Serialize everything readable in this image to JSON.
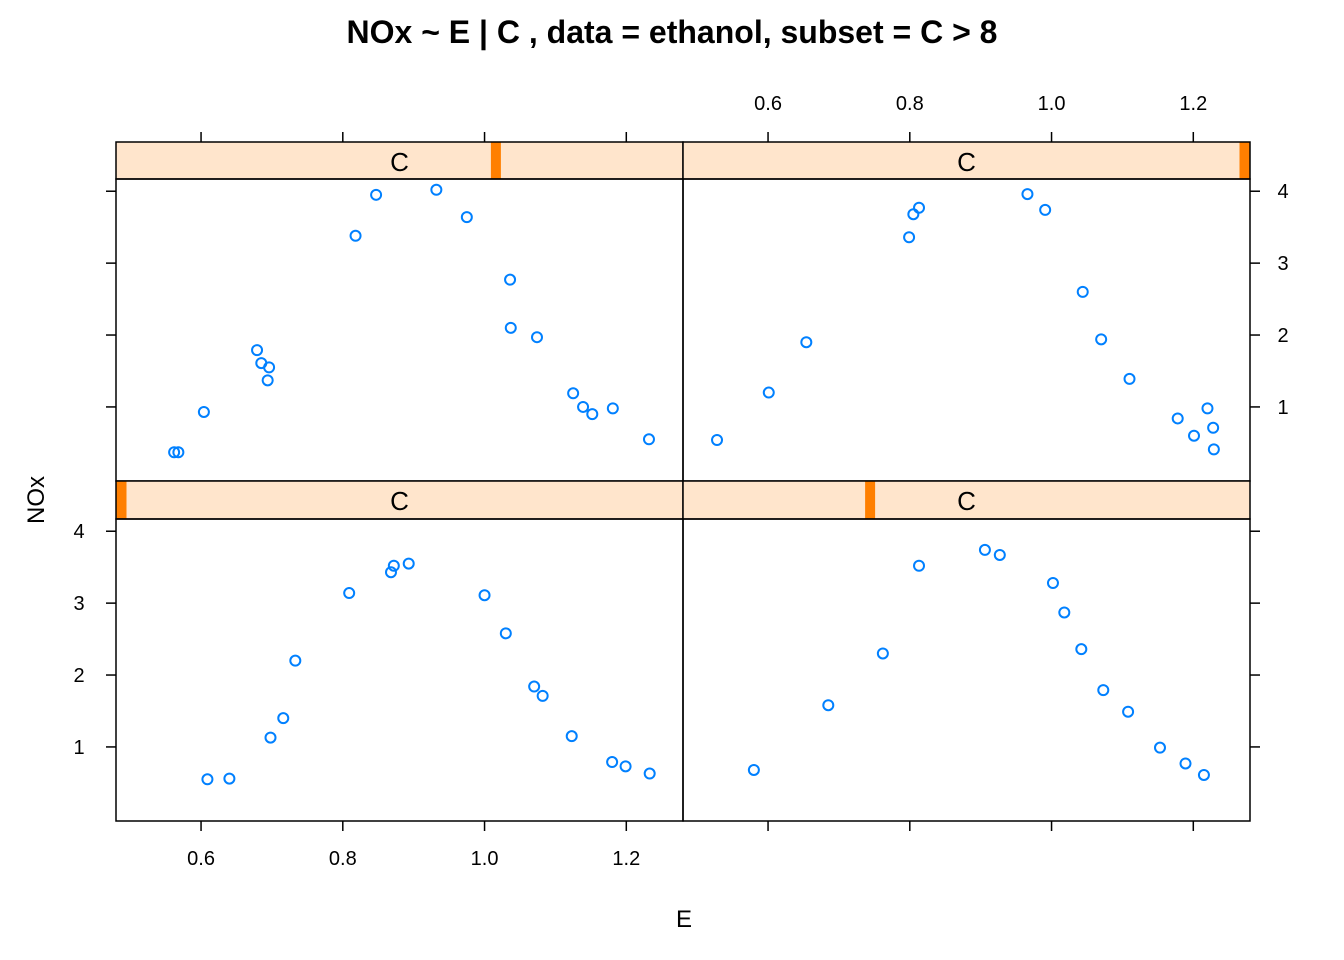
{
  "chart_data": {
    "type": "scatter",
    "title": "NOx ~ E | C , data = ethanol, subset = C > 8",
    "xlabel": "E",
    "ylabel": "NOx",
    "xlim": [
      0.48,
      1.28
    ],
    "ylim": [
      -0.03,
      4.17
    ],
    "x_ticks": [
      0.6,
      0.8,
      1.0,
      1.2
    ],
    "x_tick_labels": [
      "0.6",
      "0.8",
      "1.0",
      "1.2"
    ],
    "y_ticks": [
      1,
      2,
      3,
      4
    ],
    "y_tick_labels": [
      "1",
      "2",
      "3",
      "4"
    ],
    "grid": false,
    "colors": {
      "points": "#0080ff",
      "strip_bg": "#ffe5cc",
      "strip_marker": "#ff7f00",
      "frame": "#000000"
    },
    "panels": [
      {
        "position": "top-left",
        "strip_label": "C",
        "strip_marker_fraction": 0.67,
        "x": [
          0.562,
          0.568,
          0.604,
          0.679,
          0.685,
          0.696,
          0.694,
          0.818,
          0.847,
          0.932,
          0.975,
          1.036,
          1.037,
          1.074,
          1.125,
          1.139,
          1.152,
          1.181,
          1.232
        ],
        "y": [
          0.37,
          0.37,
          0.93,
          1.79,
          1.61,
          1.55,
          1.37,
          3.38,
          3.95,
          4.02,
          3.64,
          2.77,
          2.1,
          1.97,
          1.19,
          1.0,
          0.9,
          0.98,
          0.55
        ]
      },
      {
        "position": "top-right",
        "strip_label": "C",
        "strip_marker_fraction": 0.995,
        "x": [
          0.528,
          0.601,
          0.654,
          0.799,
          0.805,
          0.813,
          0.966,
          0.991,
          1.044,
          1.07,
          1.11,
          1.178,
          1.201,
          1.22,
          1.228,
          1.229
        ],
        "y": [
          0.54,
          1.2,
          1.9,
          3.36,
          3.68,
          3.77,
          3.96,
          3.74,
          2.6,
          1.94,
          1.39,
          0.84,
          0.6,
          0.98,
          0.71,
          0.41
        ]
      },
      {
        "position": "bottom-left",
        "strip_label": "C",
        "strip_marker_fraction": 0.005,
        "x": [
          0.609,
          0.64,
          0.698,
          0.716,
          0.733,
          0.809,
          0.868,
          0.872,
          0.893,
          1.0,
          1.03,
          1.07,
          1.082,
          1.123,
          1.18,
          1.199,
          1.233
        ],
        "y": [
          0.55,
          0.56,
          1.13,
          1.4,
          2.2,
          3.14,
          3.43,
          3.52,
          3.55,
          3.11,
          2.58,
          1.84,
          1.71,
          1.15,
          0.79,
          0.73,
          0.63
        ]
      },
      {
        "position": "bottom-right",
        "strip_label": "C",
        "strip_marker_fraction": 0.33,
        "x": [
          0.58,
          0.685,
          0.762,
          0.813,
          0.906,
          0.927,
          1.002,
          1.018,
          1.042,
          1.073,
          1.108,
          1.153,
          1.189,
          1.215
        ],
        "y": [
          0.68,
          1.58,
          2.3,
          3.52,
          3.74,
          3.67,
          3.28,
          2.87,
          2.36,
          1.79,
          1.49,
          0.99,
          0.77,
          0.61
        ]
      }
    ]
  }
}
